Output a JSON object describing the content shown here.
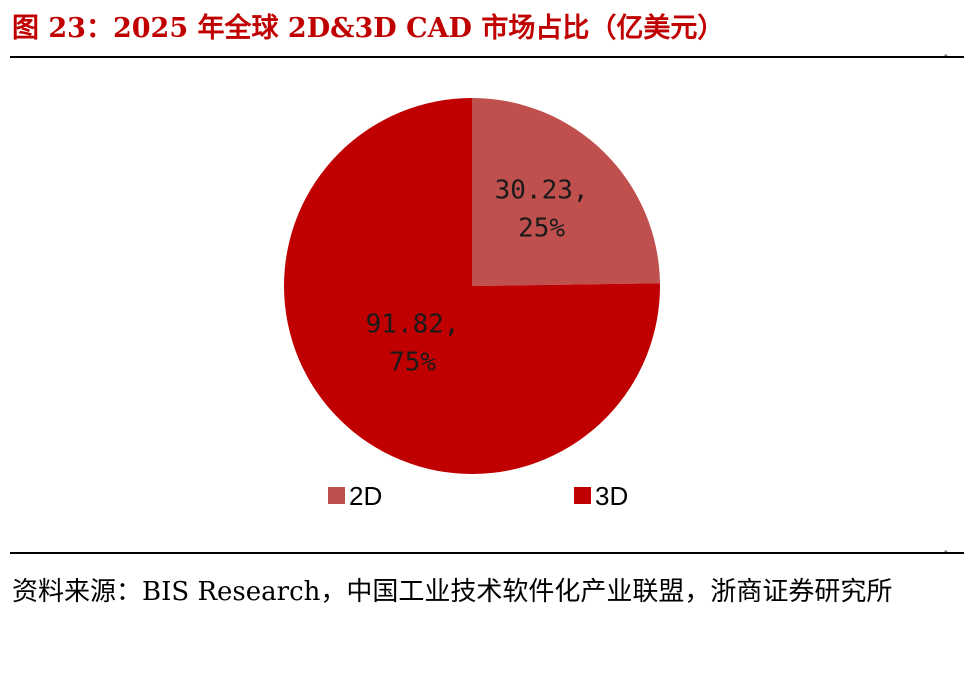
{
  "title": "图 23：2025 年全球 2D&3D CAD 市场占比（亿美元）",
  "source": "资料来源：BIS Research，中国工业技术软件化产业联盟，浙商证券研究所",
  "chart_data": {
    "type": "pie",
    "title": "",
    "unit": "亿美元",
    "slices": [
      {
        "name": "2D",
        "value": 30.23,
        "label_value": "30.23,",
        "label_pct": "25%",
        "color": "#c0504d"
      },
      {
        "name": "3D",
        "value": 91.82,
        "label_value": "91.82,",
        "label_pct": "75%",
        "color": "#c00000"
      }
    ],
    "start": "12 o'clock, clockwise",
    "legend": {
      "position": "bottom",
      "entries": [
        "2D",
        "3D"
      ]
    }
  }
}
